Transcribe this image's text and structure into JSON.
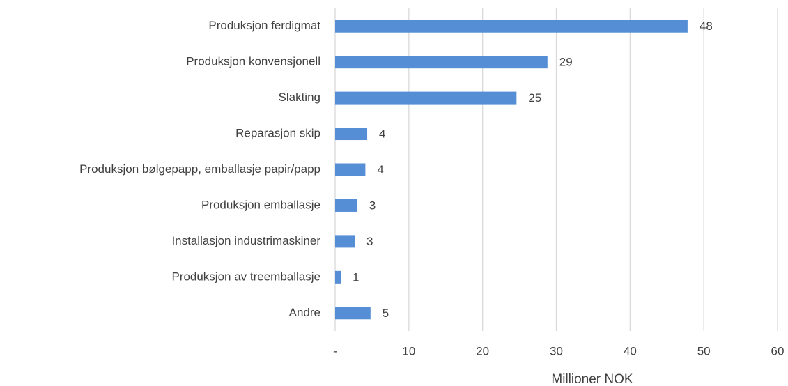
{
  "chart_data": {
    "type": "bar",
    "orientation": "horizontal",
    "categories": [
      "Produksjon ferdigmat",
      "Produksjon konvensjonell",
      "Slakting",
      "Reparasjon skip",
      "Produksjon bølgepapp, emballasje papir/papp",
      "Produksjon emballasje",
      "Installasjon industrimaskiner",
      "Produksjon av treemballasje",
      "Andre"
    ],
    "values": [
      47.8,
      28.8,
      24.6,
      4.35,
      4.1,
      3.0,
      2.65,
      0.76,
      4.8
    ],
    "value_labels": [
      "48",
      "29",
      "25",
      "4",
      "4",
      "3",
      "3",
      "1",
      "5"
    ],
    "color": "#558ed5",
    "xlabel": "Millioner NOK",
    "xlim": [
      0,
      60
    ],
    "xticks": [
      {
        "value": 0,
        "label": "-"
      },
      10,
      20,
      30,
      40,
      50,
      60
    ],
    "grid": true
  }
}
